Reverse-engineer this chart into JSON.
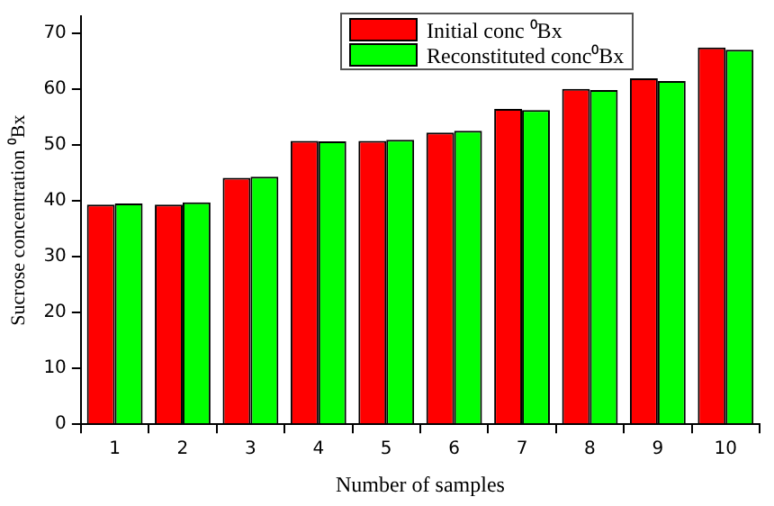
{
  "chart_data": {
    "type": "bar",
    "xlabel": "Number of samples",
    "ylabel": "Sucrose concentration ⁰Bx",
    "categories": [
      "1",
      "2",
      "3",
      "4",
      "5",
      "6",
      "7",
      "8",
      "9",
      "10"
    ],
    "series": [
      {
        "name": "Initial conc ⁰Bx",
        "color": "#ff0000",
        "values": [
          39.3,
          39.3,
          44.1,
          50.7,
          50.7,
          52.2,
          56.4,
          60.0,
          61.9,
          67.4
        ]
      },
      {
        "name": "Reconstituted conc⁰Bx",
        "color": "#00ff00",
        "values": [
          39.5,
          39.7,
          44.3,
          50.6,
          50.9,
          52.5,
          56.2,
          59.8,
          61.4,
          67.0
        ]
      }
    ],
    "ylim": [
      0,
      73
    ],
    "yticks": [
      0,
      10,
      20,
      30,
      40,
      50,
      60,
      70
    ],
    "grid": false,
    "legend": "top right"
  }
}
